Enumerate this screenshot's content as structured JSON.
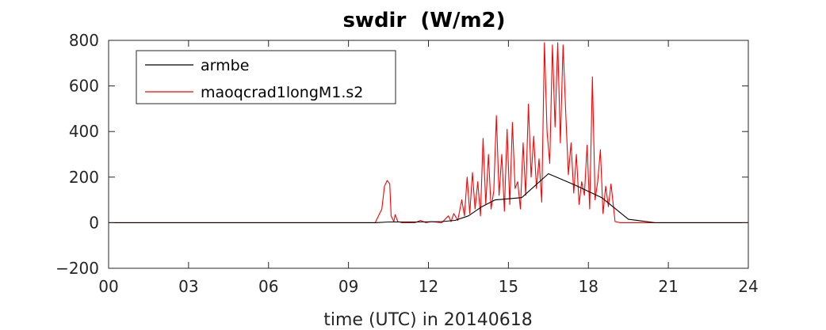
{
  "chart_data": {
    "type": "line",
    "title": "swdir  (W/m2)",
    "xlabel": "time (UTC) in 20140618",
    "ylabel": "",
    "xlim": [
      0,
      24
    ],
    "ylim": [
      -200,
      800
    ],
    "x_ticks": [
      0,
      3,
      6,
      9,
      12,
      15,
      18,
      21,
      24
    ],
    "x_tick_labels": [
      "00",
      "03",
      "06",
      "09",
      "12",
      "15",
      "18",
      "21",
      "24"
    ],
    "y_ticks": [
      -200,
      0,
      200,
      400,
      600,
      800
    ],
    "y_tick_labels": [
      "−200",
      "0",
      "200",
      "400",
      "600",
      "800"
    ],
    "grid": false,
    "legend_position": "top-left",
    "series": [
      {
        "name": "armbe",
        "color": "#000000",
        "x": [
          0,
          10.0,
          10.5,
          11.5,
          12.5,
          13.0,
          13.5,
          14.0,
          14.5,
          15.0,
          15.5,
          16.5,
          17.5,
          18.5,
          19.5,
          20.5,
          24
        ],
        "y": [
          0,
          0,
          3,
          3,
          5,
          10,
          30,
          70,
          100,
          105,
          110,
          215,
          165,
          110,
          15,
          0,
          0
        ]
      },
      {
        "name": "maoqcrad1longM1.s2",
        "color": "#ff0000",
        "x": [
          0,
          10.0,
          10.25,
          10.35,
          10.45,
          10.55,
          10.6,
          10.7,
          10.75,
          10.85,
          11.0,
          11.5,
          11.7,
          11.9,
          12.1,
          12.5,
          12.75,
          12.85,
          12.95,
          13.1,
          13.25,
          13.35,
          13.45,
          13.55,
          13.65,
          13.75,
          13.85,
          13.95,
          14.05,
          14.15,
          14.25,
          14.35,
          14.45,
          14.55,
          14.65,
          14.75,
          14.85,
          14.95,
          15.05,
          15.15,
          15.25,
          15.35,
          15.45,
          15.55,
          15.65,
          15.75,
          15.85,
          15.95,
          16.05,
          16.15,
          16.25,
          16.35,
          16.45,
          16.55,
          16.65,
          16.75,
          16.85,
          16.95,
          17.05,
          17.15,
          17.25,
          17.35,
          17.45,
          17.55,
          17.65,
          17.75,
          17.85,
          17.95,
          18.05,
          18.15,
          18.25,
          18.35,
          18.45,
          18.55,
          18.65,
          18.75,
          18.85,
          19.0,
          19.2,
          24
        ],
        "y": [
          0,
          0,
          60,
          160,
          185,
          170,
          30,
          5,
          35,
          5,
          0,
          0,
          10,
          0,
          5,
          0,
          30,
          5,
          40,
          10,
          100,
          30,
          200,
          40,
          220,
          60,
          180,
          30,
          370,
          80,
          300,
          60,
          140,
          470,
          120,
          300,
          50,
          410,
          80,
          440,
          150,
          180,
          60,
          350,
          120,
          520,
          200,
          380,
          150,
          280,
          90,
          790,
          400,
          260,
          780,
          420,
          790,
          350,
          780,
          480,
          210,
          350,
          130,
          300,
          80,
          180,
          120,
          340,
          60,
          640,
          100,
          180,
          320,
          40,
          160,
          70,
          170,
          5,
          0,
          0
        ]
      }
    ]
  }
}
